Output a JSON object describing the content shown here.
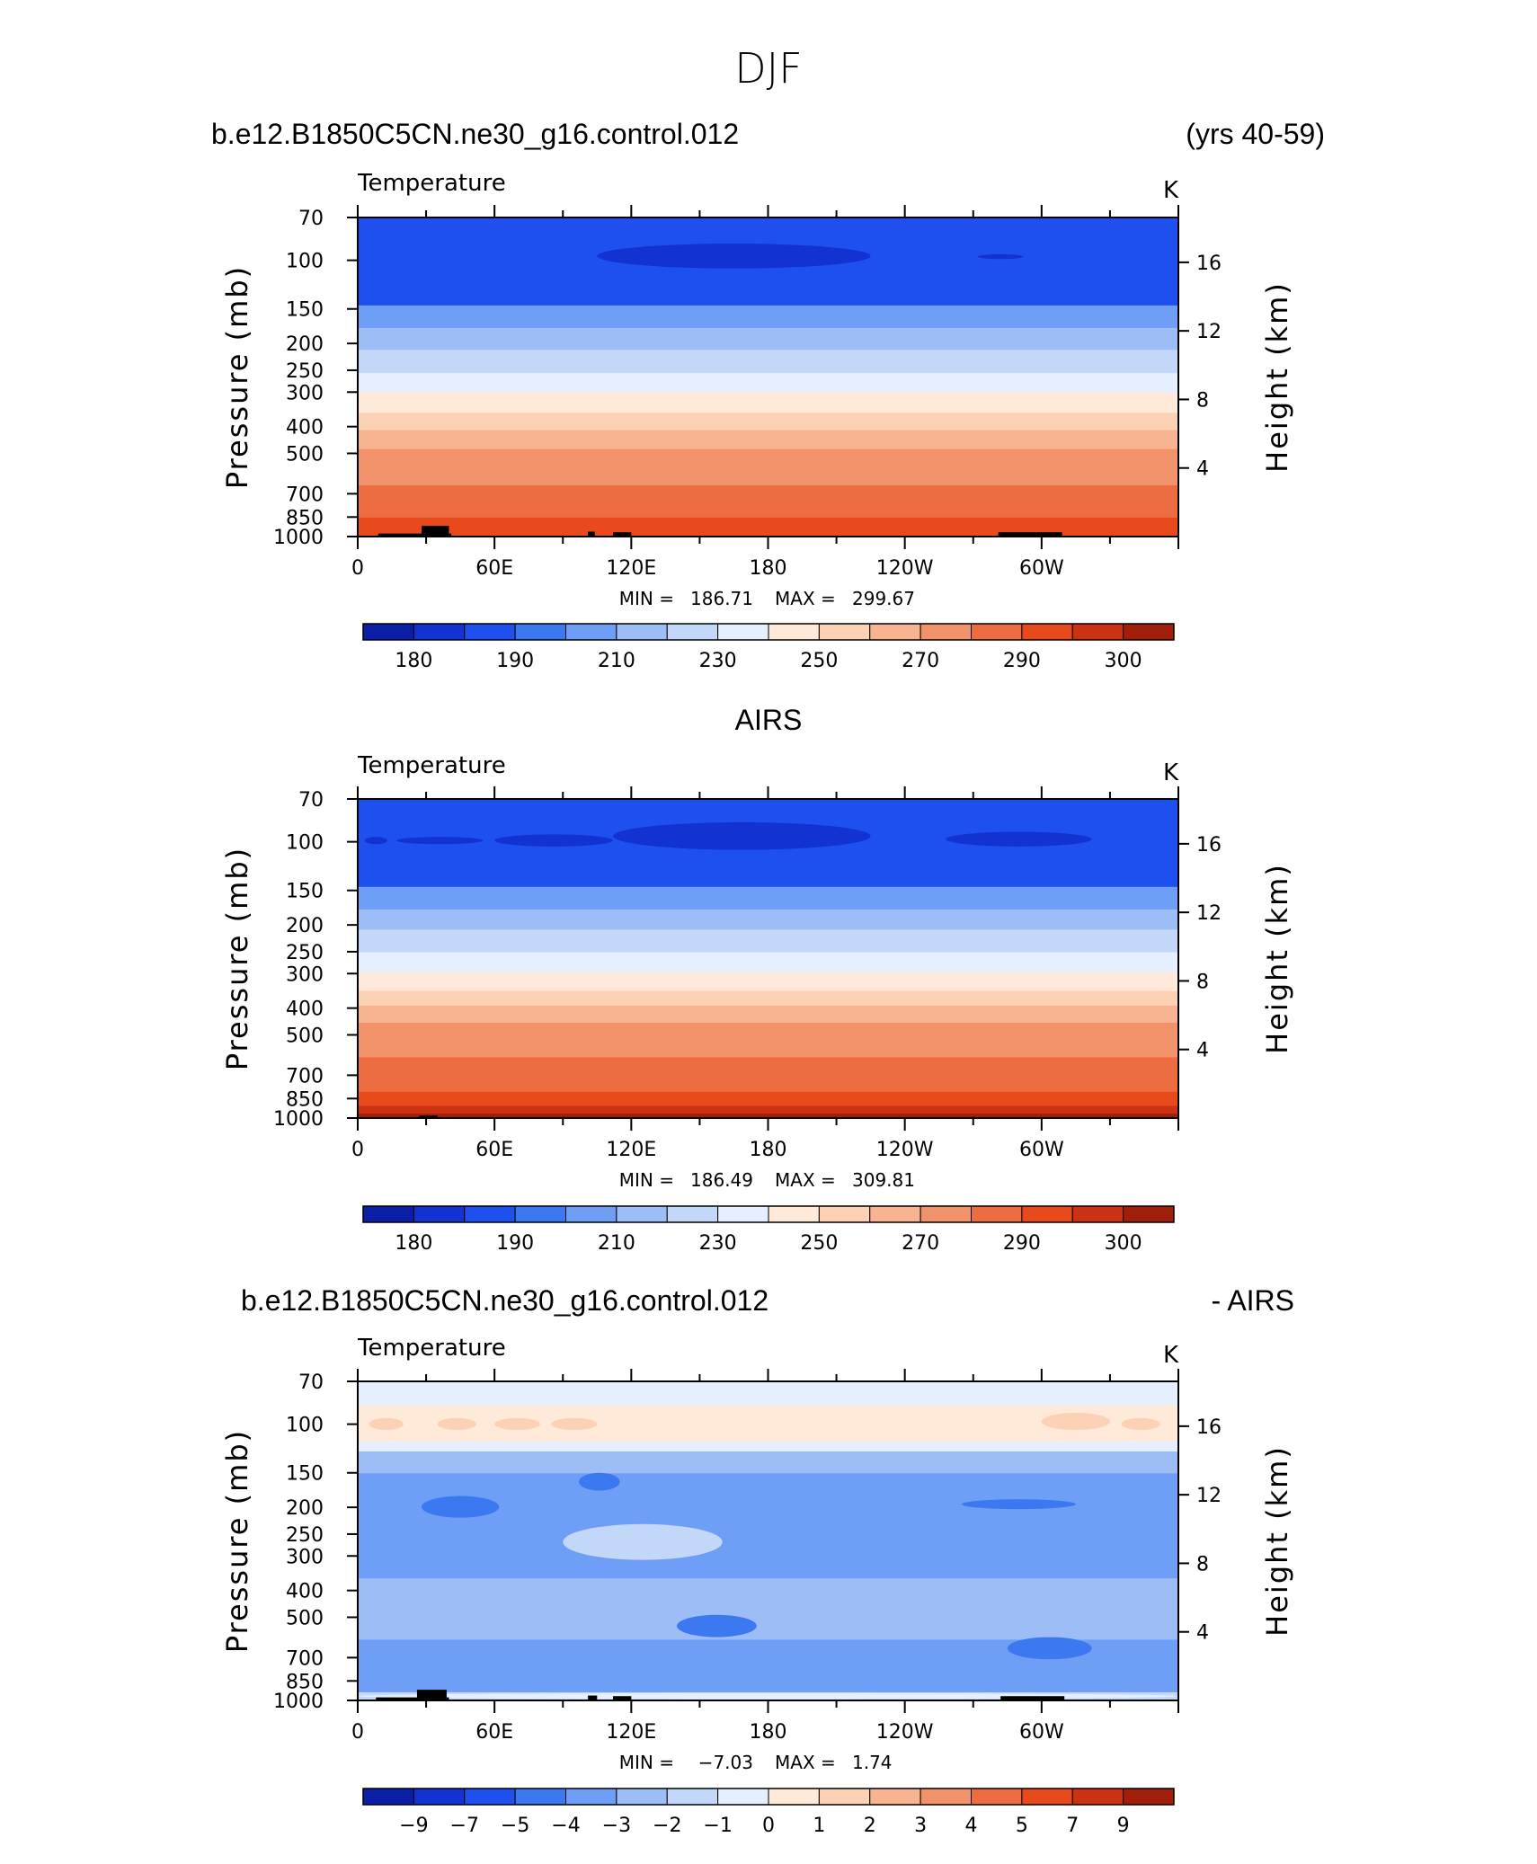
{
  "figure_title": "DJF",
  "colors": {
    "temp_palette": [
      "#00008c",
      "#0a1ea8",
      "#1232d2",
      "#1e50f0",
      "#3c78f0",
      "#6e9ef5",
      "#9dbdf7",
      "#c3d7f9",
      "#e6efff",
      "#ffe9d9",
      "#fcd1b5",
      "#f8b391",
      "#f2926a",
      "#ee6c41",
      "#e84a1b",
      "#cc3113",
      "#a01e0a",
      "#741004"
    ],
    "diff_palette": [
      "#00008c",
      "#0a1ea8",
      "#1232d2",
      "#1e50f0",
      "#3c78f0",
      "#6e9ef5",
      "#9dbdf7",
      "#c3d7f9",
      "#e6efff",
      "#ffe9d9",
      "#fcd1b5",
      "#f8b391",
      "#f2926a",
      "#ee6c41",
      "#e84a1b",
      "#cc3113",
      "#a01e0a",
      "#741004"
    ],
    "terrain": "#000000"
  },
  "chart_data": [
    {
      "type": "heatmap",
      "heading_left": "b.e12.B1850C5CN.ne30_g16.control.012",
      "heading_right": "(yrs 40-59)",
      "title": "Temperature",
      "units": "K",
      "ylabel": "Pressure (mb)",
      "y2label": "Height (km)",
      "x_ticks": [
        "0",
        "60E",
        "120E",
        "180",
        "120W",
        "60W"
      ],
      "x_tick_lon": [
        0,
        60,
        120,
        180,
        240,
        300
      ],
      "xlim": [
        0,
        360
      ],
      "y_ticks": [
        "70",
        "100",
        "150",
        "200",
        "250",
        "300",
        "400",
        "500",
        "700",
        "850",
        "1000"
      ],
      "y_tick_p": [
        70,
        100,
        150,
        200,
        250,
        300,
        400,
        500,
        700,
        850,
        1000
      ],
      "ylim": [
        1000,
        70
      ],
      "y2_ticks": [
        "16",
        "12",
        "8",
        "4"
      ],
      "y2_tick_km": [
        16,
        12,
        8,
        4
      ],
      "stats": {
        "min_label": "MIN =",
        "min": "186.71",
        "max_label": "MAX =",
        "max": "299.67"
      },
      "colorbar_labels": [
        "180",
        "190",
        "210",
        "230",
        "250",
        "270",
        "290",
        "300"
      ],
      "level_bands": [
        {
          "p_bottom": 1000,
          "p_top": 930,
          "class": 14
        },
        {
          "p_bottom": 930,
          "p_top": 850,
          "class": 14
        },
        {
          "p_bottom": 850,
          "p_top": 760,
          "class": 13
        },
        {
          "p_bottom": 760,
          "p_top": 650,
          "class": 13
        },
        {
          "p_bottom": 650,
          "p_top": 560,
          "class": 12
        },
        {
          "p_bottom": 560,
          "p_top": 480,
          "class": 12
        },
        {
          "p_bottom": 480,
          "p_top": 410,
          "class": 11
        },
        {
          "p_bottom": 410,
          "p_top": 355,
          "class": 10
        },
        {
          "p_bottom": 355,
          "p_top": 300,
          "class": 9
        },
        {
          "p_bottom": 300,
          "p_top": 255,
          "class": 8
        },
        {
          "p_bottom": 255,
          "p_top": 210,
          "class": 7
        },
        {
          "p_bottom": 210,
          "p_top": 175,
          "class": 6
        },
        {
          "p_bottom": 175,
          "p_top": 145,
          "class": 5
        },
        {
          "p_bottom": 145,
          "p_top": 70,
          "class": 3
        }
      ],
      "features": [
        {
          "lon_start": 105,
          "lon_end": 225,
          "p_center": 97,
          "p_half": 10,
          "class": 2
        },
        {
          "lon_start": 272,
          "lon_end": 292,
          "p_center": 97,
          "p_half": 2,
          "class": 2
        }
      ],
      "terrain": [
        {
          "lon_start": 9,
          "lon_end": 28,
          "p_top": 975
        },
        {
          "lon_start": 28,
          "lon_end": 40,
          "p_top": 915
        },
        {
          "lon_start": 40,
          "lon_end": 41,
          "p_top": 975
        },
        {
          "lon_start": 101,
          "lon_end": 104,
          "p_top": 960
        },
        {
          "lon_start": 112,
          "lon_end": 120,
          "p_top": 965
        },
        {
          "lon_start": 281,
          "lon_end": 309,
          "p_top": 965
        }
      ]
    },
    {
      "type": "heatmap",
      "heading_center": "AIRS",
      "title": "Temperature",
      "units": "K",
      "ylabel": "Pressure (mb)",
      "y2label": "Height (km)",
      "x_ticks": [
        "0",
        "60E",
        "120E",
        "180",
        "120W",
        "60W"
      ],
      "x_tick_lon": [
        0,
        60,
        120,
        180,
        240,
        300
      ],
      "xlim": [
        0,
        360
      ],
      "y_ticks": [
        "70",
        "100",
        "150",
        "200",
        "250",
        "300",
        "400",
        "500",
        "700",
        "850",
        "1000"
      ],
      "y_tick_p": [
        70,
        100,
        150,
        200,
        250,
        300,
        400,
        500,
        700,
        850,
        1000
      ],
      "ylim": [
        1000,
        70
      ],
      "y2_ticks": [
        "16",
        "12",
        "8",
        "4"
      ],
      "y2_tick_km": [
        16,
        12,
        8,
        4
      ],
      "stats": {
        "min_label": "MIN =",
        "min": "186.49",
        "max_label": "MAX =",
        "max": "309.81"
      },
      "colorbar_labels": [
        "180",
        "190",
        "210",
        "230",
        "250",
        "270",
        "290",
        "300"
      ],
      "level_bands": [
        {
          "p_bottom": 1000,
          "p_top": 960,
          "class": 16
        },
        {
          "p_bottom": 960,
          "p_top": 900,
          "class": 15
        },
        {
          "p_bottom": 900,
          "p_top": 800,
          "class": 14
        },
        {
          "p_bottom": 800,
          "p_top": 700,
          "class": 13
        },
        {
          "p_bottom": 700,
          "p_top": 600,
          "class": 13
        },
        {
          "p_bottom": 600,
          "p_top": 520,
          "class": 12
        },
        {
          "p_bottom": 520,
          "p_top": 450,
          "class": 12
        },
        {
          "p_bottom": 450,
          "p_top": 390,
          "class": 11
        },
        {
          "p_bottom": 390,
          "p_top": 345,
          "class": 10
        },
        {
          "p_bottom": 345,
          "p_top": 295,
          "class": 9
        },
        {
          "p_bottom": 295,
          "p_top": 250,
          "class": 8
        },
        {
          "p_bottom": 250,
          "p_top": 207,
          "class": 7
        },
        {
          "p_bottom": 207,
          "p_top": 175,
          "class": 6
        },
        {
          "p_bottom": 175,
          "p_top": 145,
          "class": 5
        },
        {
          "p_bottom": 145,
          "p_top": 70,
          "class": 3
        }
      ],
      "features": [
        {
          "lon_start": 3,
          "lon_end": 13,
          "p_center": 99,
          "p_half": 3,
          "class": 2
        },
        {
          "lon_start": 17,
          "lon_end": 55,
          "p_center": 99,
          "p_half": 3,
          "class": 2
        },
        {
          "lon_start": 60,
          "lon_end": 112,
          "p_center": 99,
          "p_half": 5,
          "class": 2
        },
        {
          "lon_start": 112,
          "lon_end": 225,
          "p_center": 96,
          "p_half": 11,
          "class": 2
        },
        {
          "lon_start": 258,
          "lon_end": 322,
          "p_center": 98,
          "p_half": 6,
          "class": 2
        }
      ],
      "terrain": [
        {
          "lon_start": 27,
          "lon_end": 35,
          "p_top": 980
        }
      ]
    },
    {
      "type": "heatmap",
      "heading_left": "b.e12.B1850C5CN.ne30_g16.control.012",
      "heading_right": "- AIRS",
      "title": "Temperature",
      "units": "K",
      "ylabel": "Pressure (mb)",
      "y2label": "Height (km)",
      "x_ticks": [
        "0",
        "60E",
        "120E",
        "180",
        "120W",
        "60W"
      ],
      "x_tick_lon": [
        0,
        60,
        120,
        180,
        240,
        300
      ],
      "xlim": [
        0,
        360
      ],
      "y_ticks": [
        "70",
        "100",
        "150",
        "200",
        "250",
        "300",
        "400",
        "500",
        "700",
        "850",
        "1000"
      ],
      "y_tick_p": [
        70,
        100,
        150,
        200,
        250,
        300,
        400,
        500,
        700,
        850,
        1000
      ],
      "ylim": [
        1000,
        70
      ],
      "y2_ticks": [
        "16",
        "12",
        "8",
        "4"
      ],
      "y2_tick_km": [
        16,
        12,
        8,
        4
      ],
      "stats": {
        "min_label": "MIN =",
        "min": "−7.03",
        "max_label": "MAX =",
        "max": "1.74"
      },
      "colorbar_labels": [
        "−9",
        "−7",
        "−5",
        "−4",
        "−3",
        "−2",
        "−1",
        "0",
        "1",
        "2",
        "3",
        "4",
        "5",
        "7",
        "9"
      ],
      "level_bands": [
        {
          "p_bottom": 1000,
          "p_top": 930,
          "class": 7
        },
        {
          "p_bottom": 930,
          "p_top": 600,
          "class": 5
        },
        {
          "p_bottom": 600,
          "p_top": 360,
          "class": 6
        },
        {
          "p_bottom": 360,
          "p_top": 150,
          "class": 5
        },
        {
          "p_bottom": 150,
          "p_top": 125,
          "class": 6
        },
        {
          "p_bottom": 125,
          "p_top": 115,
          "class": 8
        },
        {
          "p_bottom": 115,
          "p_top": 85,
          "class": 9
        },
        {
          "p_bottom": 85,
          "p_top": 70,
          "class": 8
        }
      ],
      "features": [
        {
          "lon_start": 90,
          "lon_end": 160,
          "p_center": 270,
          "p_half": 40,
          "class": 7
        },
        {
          "lon_start": 5,
          "lon_end": 20,
          "p_center": 100,
          "p_half": 5,
          "class": 10
        },
        {
          "lon_start": 35,
          "lon_end": 52,
          "p_center": 100,
          "p_half": 5,
          "class": 10
        },
        {
          "lon_start": 60,
          "lon_end": 80,
          "p_center": 100,
          "p_half": 5,
          "class": 10
        },
        {
          "lon_start": 85,
          "lon_end": 105,
          "p_center": 100,
          "p_half": 5,
          "class": 10
        },
        {
          "lon_start": 300,
          "lon_end": 330,
          "p_center": 98,
          "p_half": 7,
          "class": 10
        },
        {
          "lon_start": 335,
          "lon_end": 352,
          "p_center": 100,
          "p_half": 5,
          "class": 10
        },
        {
          "lon_start": 97,
          "lon_end": 115,
          "p_center": 162,
          "p_half": 12,
          "class": 4
        },
        {
          "lon_start": 28,
          "lon_end": 62,
          "p_center": 200,
          "p_half": 18,
          "class": 4
        },
        {
          "lon_start": 265,
          "lon_end": 315,
          "p_center": 195,
          "p_half": 8,
          "class": 4
        },
        {
          "lon_start": 140,
          "lon_end": 175,
          "p_center": 540,
          "p_half": 50,
          "class": 4
        },
        {
          "lon_start": 285,
          "lon_end": 322,
          "p_center": 650,
          "p_half": 60,
          "class": 4
        },
        {
          "lon_start": 0,
          "lon_end": 360,
          "p_center": 965,
          "p_half": 25,
          "class": 8
        }
      ],
      "terrain": [
        {
          "lon_start": 8,
          "lon_end": 26,
          "p_top": 975
        },
        {
          "lon_start": 26,
          "lon_end": 39,
          "p_top": 915
        },
        {
          "lon_start": 39,
          "lon_end": 40,
          "p_top": 975
        },
        {
          "lon_start": 101,
          "lon_end": 105,
          "p_top": 960
        },
        {
          "lon_start": 112,
          "lon_end": 120,
          "p_top": 965
        },
        {
          "lon_start": 282,
          "lon_end": 310,
          "p_top": 965
        }
      ]
    }
  ]
}
